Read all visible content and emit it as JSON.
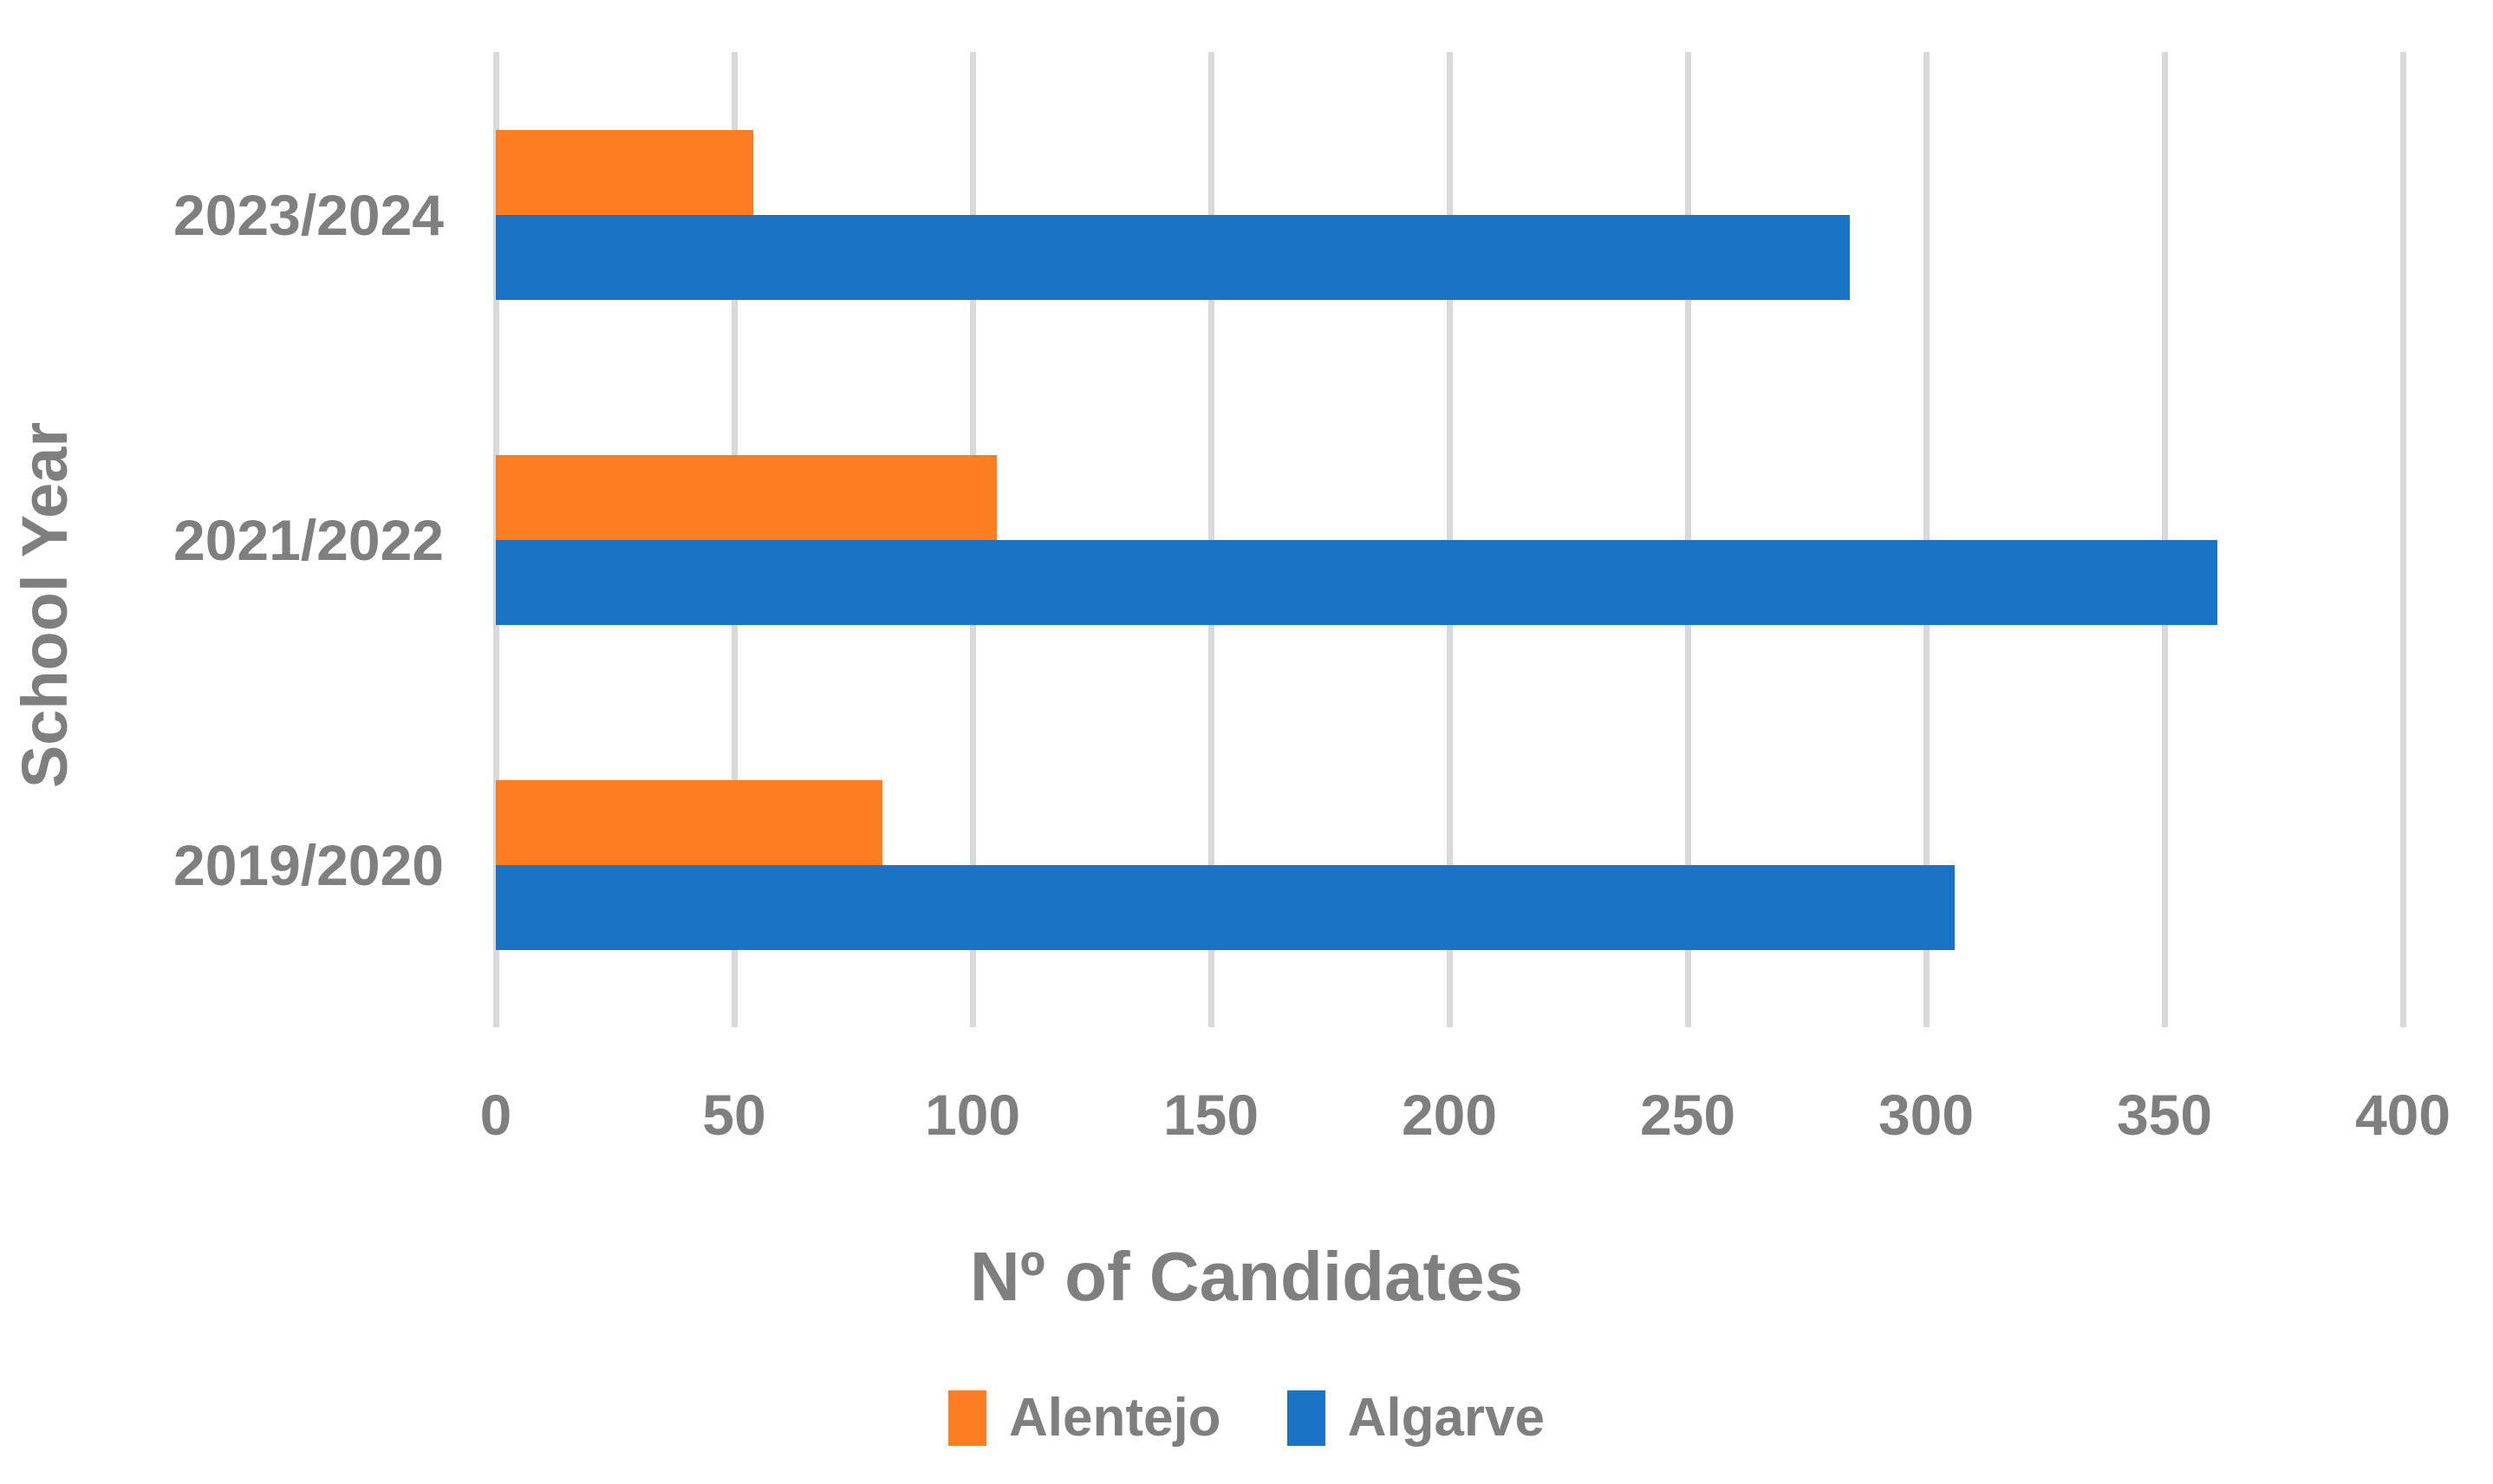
{
  "chart_data": {
    "type": "bar",
    "orientation": "horizontal",
    "title": "",
    "xlabel": "Nº of Candidates",
    "ylabel": "School Year",
    "categories": [
      "2023/2024",
      "2021/2022",
      "2019/2020"
    ],
    "series": [
      {
        "name": "Alentejo",
        "color": "#FC7D22",
        "values": [
          54,
          105,
          81
        ]
      },
      {
        "name": "Algarve",
        "color": "#1B73C8",
        "values": [
          284,
          361,
          306
        ]
      }
    ],
    "xlim": [
      0,
      400
    ],
    "xticks": [
      0,
      50,
      100,
      150,
      200,
      250,
      300,
      350,
      400
    ],
    "grid": true,
    "gridline_color": "#D9D9D9",
    "text_color": "#7F7F7F",
    "background_color": "#FFFFFF",
    "legend_position": "bottom"
  }
}
